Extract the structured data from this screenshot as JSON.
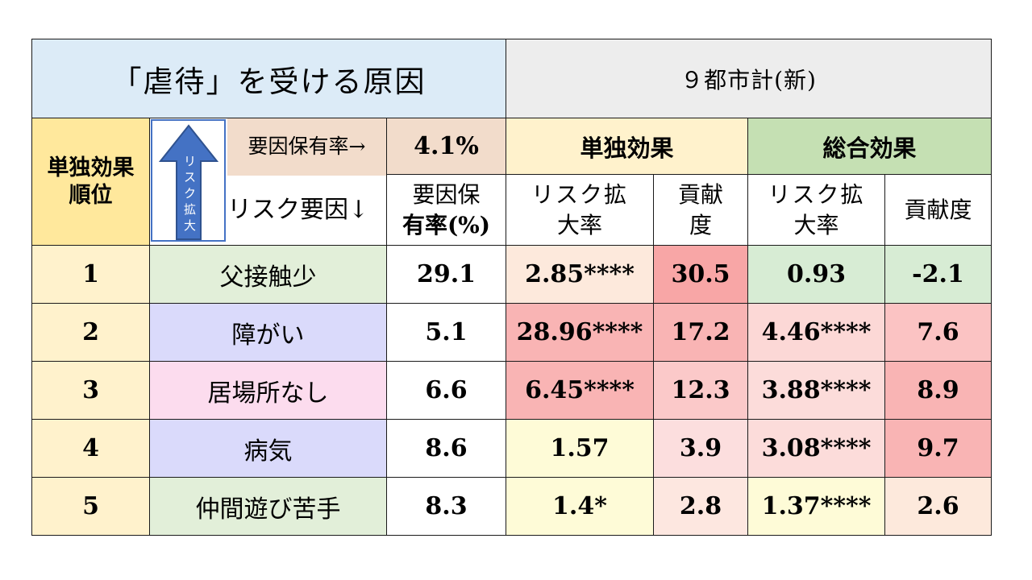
{
  "title": "「虐待」を受ける原因",
  "city_header": "９都市計(新)",
  "rank_header": [
    "単独効果",
    "順位"
  ],
  "arrow_label": [
    "リ",
    "ス",
    "ク",
    "拡",
    "大"
  ],
  "factor_rate_label": "要因保有率→",
  "factor_rate_value": "4.1%",
  "risk_factor_label": "リスク要因↓",
  "group_single": "単独効果",
  "group_total": "総合効果",
  "col_rate": [
    "要因保",
    "有率(%)"
  ],
  "col_risk": [
    "リスク拡",
    "大率"
  ],
  "col_contrib_single": [
    "貢献",
    "度"
  ],
  "col_contrib_total": "貢献度",
  "colors": {
    "title_bg": "#dcebf7",
    "city_bg": "#ededed",
    "rank_bg": "#ffe89c",
    "rank_cell_bg": "#fff2cc",
    "factor_rate_bg": "#f2dccb",
    "single_bg": "#fff2cc",
    "total_bg": "#c5e0b3",
    "arrow": "#4472c4"
  },
  "rows": [
    {
      "rank": "1",
      "factor": "父接触少",
      "factor_bg": "#e2efd9",
      "rate": "29.1",
      "single_risk": "2.85****",
      "single_risk_bg": "#fde9dc",
      "single_contrib": "30.5",
      "single_contrib_bg": "#f8a6a6",
      "total_risk": "0.93",
      "total_risk_bg": "#d7ecd4",
      "total_contrib": "-2.1",
      "total_contrib_bg": "#d7ecd4"
    },
    {
      "rank": "2",
      "factor": "障がい",
      "factor_bg": "#dadafb",
      "rate": "5.1",
      "single_risk": "28.96****",
      "single_risk_bg": "#f9b4b4",
      "single_contrib": "17.2",
      "single_contrib_bg": "#f9b4b4",
      "total_risk": "4.46****",
      "total_risk_bg": "#fcd8d6",
      "total_contrib": "7.6",
      "total_contrib_bg": "#fbc3c3"
    },
    {
      "rank": "3",
      "factor": "居場所なし",
      "factor_bg": "#fcdcee",
      "rate": "6.6",
      "single_risk": "6.45****",
      "single_risk_bg": "#f9b4b4",
      "single_contrib": "12.3",
      "single_contrib_bg": "#fbc9c9",
      "total_risk": "3.88****",
      "total_risk_bg": "#fcdcda",
      "total_contrib": "8.9",
      "total_contrib_bg": "#f9b4b4"
    },
    {
      "rank": "4",
      "factor": "病気",
      "factor_bg": "#dadafb",
      "rate": "8.6",
      "single_risk": "1.57",
      "single_risk_bg": "#fefbd7",
      "single_contrib": "3.9",
      "single_contrib_bg": "#fcdede",
      "total_risk": "3.08****",
      "total_risk_bg": "#fcdcda",
      "total_contrib": "9.7",
      "total_contrib_bg": "#f9b4b4"
    },
    {
      "rank": "5",
      "factor": "仲間遊び苦手",
      "factor_bg": "#e2efd9",
      "rate": "8.3",
      "single_risk": "1.4*",
      "single_risk_bg": "#fefbd7",
      "single_contrib": "2.8",
      "single_contrib_bg": "#fde7e0",
      "total_risk": "1.37****",
      "total_risk_bg": "#fefbd7",
      "total_contrib": "2.6",
      "total_contrib_bg": "#fde9dc"
    }
  ]
}
